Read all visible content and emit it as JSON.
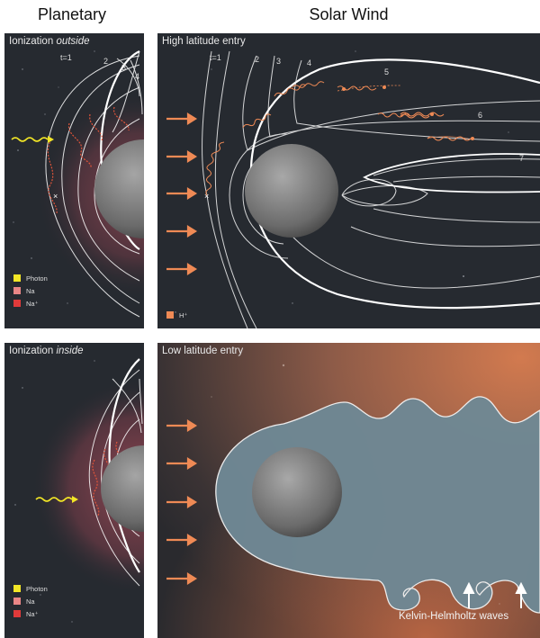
{
  "headers": {
    "planetary": "Planetary",
    "solar_wind": "Solar Wind"
  },
  "panels": {
    "top_left": {
      "title_prefix": "Ionization ",
      "title_emph": "outside"
    },
    "top_right": {
      "title": "High latitude entry"
    },
    "bottom_left": {
      "title_prefix": "Ionization ",
      "title_emph": "inside"
    },
    "bottom_right": {
      "title": "Low latitude entry"
    }
  },
  "legend_planetary": [
    {
      "label": "Photon",
      "color": "#f2e626"
    },
    {
      "label": "Na",
      "color": "#e98686"
    },
    {
      "label": "Na⁺",
      "color": "#e03a3a"
    }
  ],
  "legend_solar": {
    "label": "H⁺",
    "color": "#ef8a55"
  },
  "time_labels_left": [
    "t=1",
    "2",
    "3",
    "4"
  ],
  "time_labels_right": [
    "t=1",
    "2",
    "3",
    "4",
    "5",
    "6",
    "7"
  ],
  "kh_label": "Kelvin-Helmholtz waves",
  "colors": {
    "space": "#262a30",
    "field_line": "#ffffff",
    "ion_trace": "#e0553a",
    "proton_trace": "#ef8a55",
    "magnetosphere": "#6f8894",
    "sheath": "#c7714a"
  }
}
